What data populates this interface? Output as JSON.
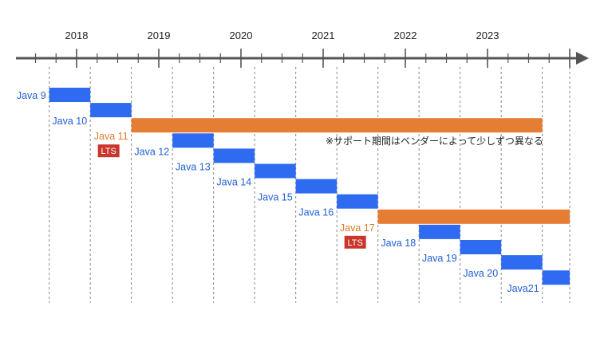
{
  "years": [
    "2018",
    "2019",
    "2020",
    "2021",
    "2022",
    "2023"
  ],
  "colors": {
    "release_bar": "#2f6bf0",
    "lts_bar": "#e57d33",
    "release_label": "#1f5fd6",
    "lts_label": "#e07b2c",
    "lts_badge": "#c9362b",
    "axis": "#555555",
    "guide": "#888888"
  },
  "lts_badge_label": "LTS",
  "note": "※サポート期間はベンダーによって少しずつ異なる",
  "releases": [
    {
      "label": "Java 9",
      "start": "2017-09",
      "end": "2018-03",
      "lts": false
    },
    {
      "label": "Java 10",
      "start": "2018-03",
      "end": "2018-09",
      "lts": false
    },
    {
      "label": "Java 11",
      "start": "2018-09",
      "end": "2023-09",
      "lts": true
    },
    {
      "label": "Java 12",
      "start": "2019-03",
      "end": "2019-09",
      "lts": false
    },
    {
      "label": "Java 13",
      "start": "2019-09",
      "end": "2020-03",
      "lts": false
    },
    {
      "label": "Java 14",
      "start": "2020-03",
      "end": "2020-09",
      "lts": false
    },
    {
      "label": "Java 15",
      "start": "2020-09",
      "end": "2021-03",
      "lts": false
    },
    {
      "label": "Java 16",
      "start": "2021-03",
      "end": "2021-09",
      "lts": false
    },
    {
      "label": "Java 17",
      "start": "2021-09",
      "end": "2024-01",
      "lts": true
    },
    {
      "label": "Java 18",
      "start": "2022-03",
      "end": "2022-09",
      "lts": false
    },
    {
      "label": "Java 19",
      "start": "2022-09",
      "end": "2023-03",
      "lts": false
    },
    {
      "label": "Java 20",
      "start": "2023-03",
      "end": "2023-09",
      "lts": false
    },
    {
      "label": "Java21",
      "start": "2023-09",
      "end": "2024-01",
      "lts": false
    }
  ]
}
